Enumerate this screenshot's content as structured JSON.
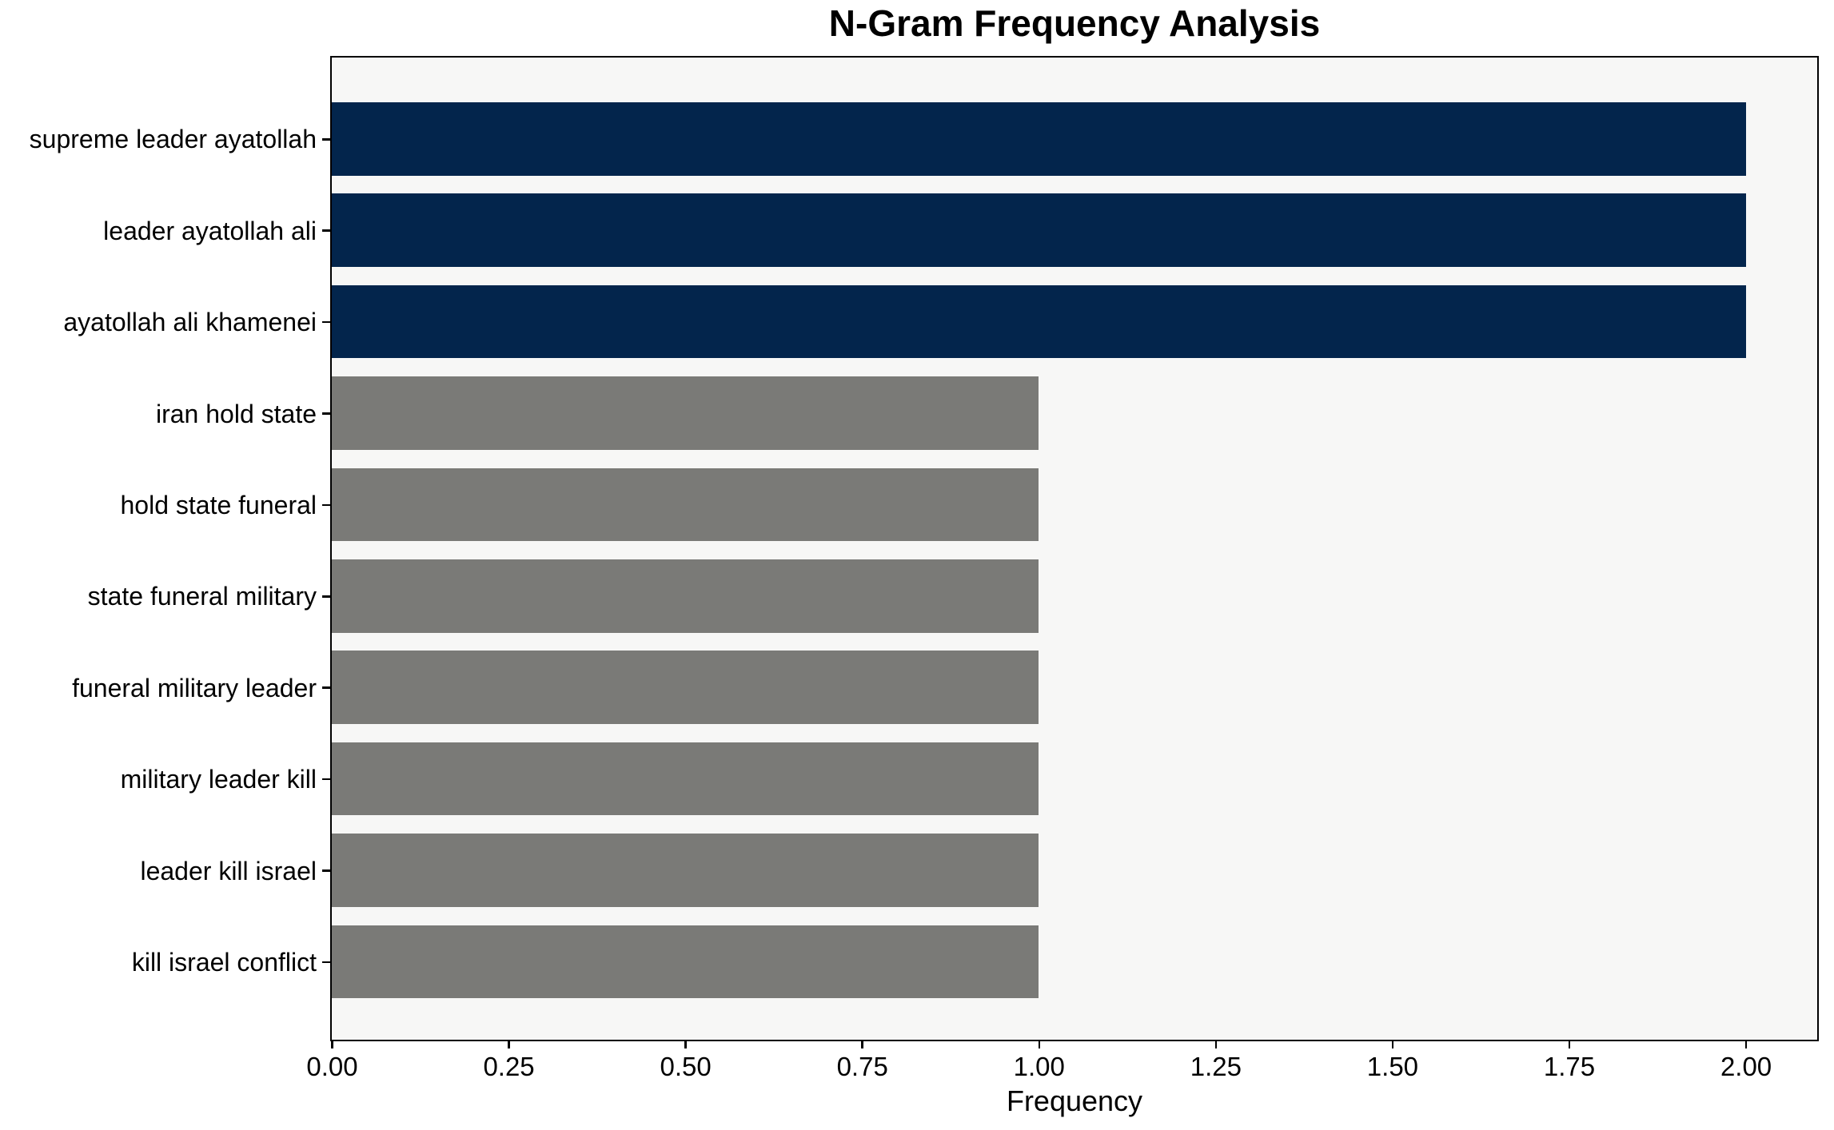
{
  "chart_data": {
    "type": "bar",
    "orientation": "horizontal",
    "title": "N-Gram Frequency Analysis",
    "xlabel": "Frequency",
    "ylabel": "",
    "categories": [
      "supreme leader ayatollah",
      "leader ayatollah ali",
      "ayatollah ali khamenei",
      "iran hold state",
      "hold state funeral",
      "state funeral military",
      "funeral military leader",
      "military leader kill",
      "leader kill israel",
      "kill israel conflict"
    ],
    "values": [
      2,
      2,
      2,
      1,
      1,
      1,
      1,
      1,
      1,
      1
    ],
    "bar_color_keys": [
      "highlight",
      "highlight",
      "highlight",
      "default",
      "default",
      "default",
      "default",
      "default",
      "default",
      "default"
    ],
    "colors": {
      "highlight": "#03254c",
      "default": "#7a7a77",
      "plot_background": "#f7f7f6",
      "figure_background": "#ffffff",
      "axis": "#000000",
      "text": "#000000"
    },
    "xlim": [
      0,
      2.1
    ],
    "xtick_values": [
      0,
      0.25,
      0.5,
      0.75,
      1.0,
      1.25,
      1.5,
      1.75,
      2.0
    ],
    "xtick_labels": [
      "0.00",
      "0.25",
      "0.50",
      "0.75",
      "1.00",
      "1.25",
      "1.50",
      "1.75",
      "2.00"
    ],
    "grid": false,
    "legend": null
  }
}
